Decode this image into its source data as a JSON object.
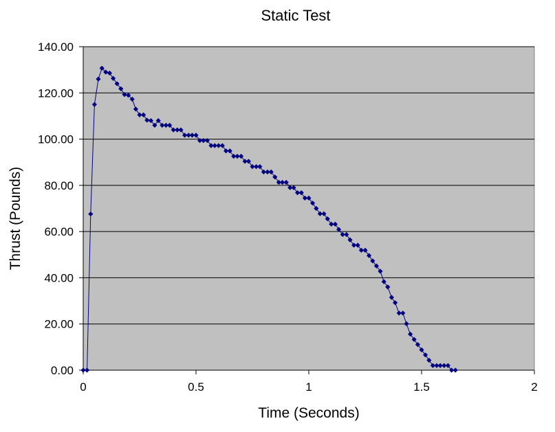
{
  "chart_data": {
    "type": "scatter",
    "title": "Static Test",
    "xlabel": "Time (Seconds)",
    "ylabel": "Thrust (Pounds)",
    "xlim": [
      0,
      2
    ],
    "ylim": [
      0,
      140
    ],
    "x_ticks": [
      "0",
      "0.5",
      "1",
      "1.5",
      "2"
    ],
    "y_ticks": [
      "0.00",
      "20.00",
      "40.00",
      "60.00",
      "80.00",
      "100.00",
      "120.00",
      "140.00"
    ],
    "grid": "horizontal",
    "legend": "none",
    "plot_background": "#c0c0c0",
    "series_color": "#000080",
    "series": [
      {
        "x": [
          0.0,
          0.017,
          0.033,
          0.05,
          0.067,
          0.083,
          0.1,
          0.117,
          0.133,
          0.15,
          0.167,
          0.183,
          0.2,
          0.217,
          0.233,
          0.25,
          0.267,
          0.283,
          0.3,
          0.317,
          0.333,
          0.35,
          0.367,
          0.383,
          0.4,
          0.417,
          0.433,
          0.45,
          0.467,
          0.483,
          0.5,
          0.517,
          0.533,
          0.55,
          0.567,
          0.583,
          0.6,
          0.617,
          0.633,
          0.65,
          0.667,
          0.683,
          0.7,
          0.717,
          0.733,
          0.75,
          0.767,
          0.783,
          0.8,
          0.817,
          0.833,
          0.85,
          0.867,
          0.883,
          0.9,
          0.917,
          0.933,
          0.95,
          0.967,
          0.983,
          1.0,
          1.017,
          1.033,
          1.05,
          1.067,
          1.083,
          1.1,
          1.117,
          1.133,
          1.15,
          1.167,
          1.183,
          1.2,
          1.217,
          1.233,
          1.25,
          1.267,
          1.283,
          1.3,
          1.317,
          1.333,
          1.35,
          1.367,
          1.383,
          1.4,
          1.417,
          1.433,
          1.45,
          1.467,
          1.483,
          1.5,
          1.517,
          1.533,
          1.55,
          1.567,
          1.583,
          1.6,
          1.617,
          1.633,
          1.65
        ],
        "y": [
          0.0,
          0.0,
          67.6,
          115.0,
          126.0,
          130.7,
          129.0,
          128.6,
          126.3,
          124.0,
          121.8,
          119.3,
          119.0,
          117.3,
          113.0,
          110.5,
          110.5,
          108.2,
          108.0,
          106.0,
          108.0,
          106.0,
          106.0,
          106.0,
          104.0,
          104.0,
          104.0,
          101.7,
          101.7,
          101.7,
          101.7,
          99.4,
          99.4,
          99.4,
          97.2,
          97.2,
          97.2,
          97.2,
          94.9,
          94.9,
          92.6,
          92.6,
          92.6,
          90.4,
          90.4,
          88.1,
          88.1,
          88.1,
          85.8,
          85.8,
          85.8,
          83.6,
          81.3,
          81.3,
          81.3,
          79.0,
          79.0,
          76.8,
          76.8,
          74.5,
          74.5,
          72.3,
          70.0,
          67.7,
          67.7,
          65.5,
          63.2,
          63.2,
          60.9,
          58.7,
          58.7,
          56.4,
          54.1,
          54.1,
          51.9,
          51.9,
          49.6,
          47.3,
          45.1,
          42.8,
          38.3,
          36.0,
          31.5,
          29.2,
          24.7,
          24.7,
          20.1,
          15.6,
          13.3,
          11.1,
          8.8,
          6.6,
          4.3,
          2.0,
          2.0,
          2.0,
          2.0,
          2.0,
          0.0,
          0.0
        ]
      }
    ]
  }
}
